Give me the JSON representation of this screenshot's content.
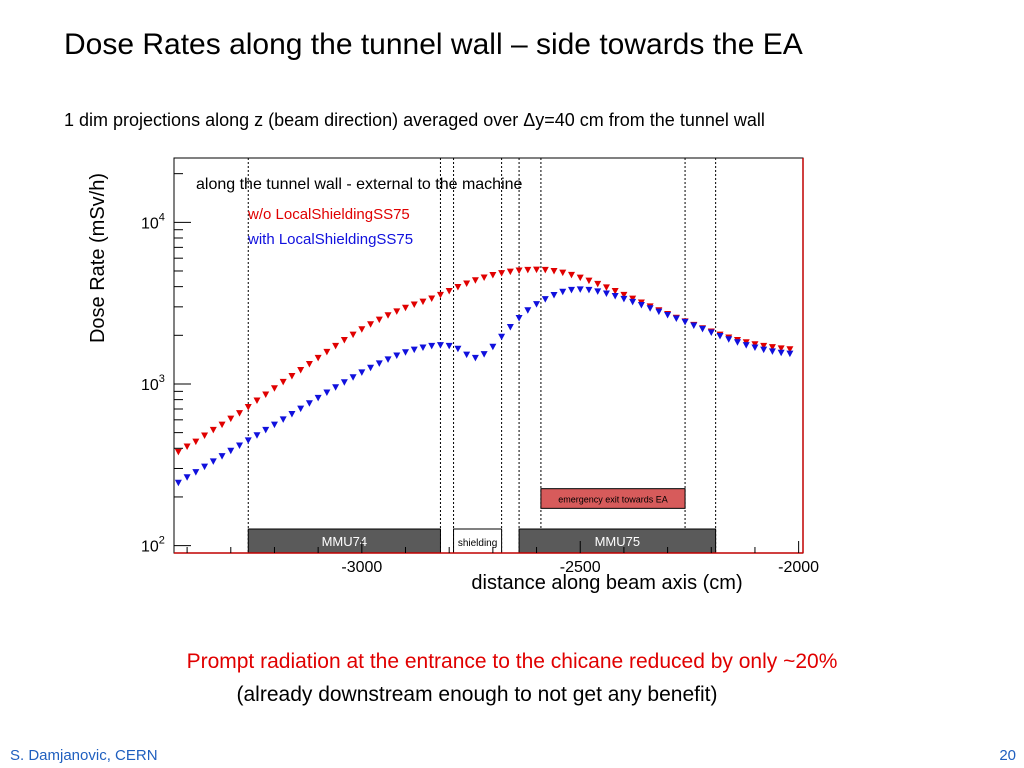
{
  "slide": {
    "title": "Dose Rates along the tunnel wall – side towards the EA",
    "subtitle": "1 dim projections along z (beam direction) averaged over Δy=40 cm from the tunnel wall",
    "conclusion": "Prompt radiation at the entrance to the chicane reduced by only ~20%",
    "conclusion_note": "(already downstream enough to not get any benefit)",
    "author": "S. Damjanovic, CERN",
    "page_number": "20"
  },
  "chart_data": {
    "type": "scatter",
    "title": "along the tunnel wall - external to the machine",
    "xlabel": "distance along beam axis (cm)",
    "ylabel": "Dose Rate (mSv/h)",
    "xlim": [
      -3430,
      -1990
    ],
    "ylim": [
      90,
      25000
    ],
    "y_scale": "log",
    "x_ticks": [
      {
        "value": -3000,
        "label": "-3000"
      },
      {
        "value": -2500,
        "label": "-2500"
      },
      {
        "value": -2000,
        "label": "-2000"
      }
    ],
    "y_ticks": [
      {
        "value": 100,
        "base": "10",
        "exp": "2"
      },
      {
        "value": 1000,
        "base": "10",
        "exp": "3"
      },
      {
        "value": 10000,
        "base": "10",
        "exp": "4"
      }
    ],
    "marker": "down-triangle",
    "grid": false,
    "legend_position": "top-left",
    "vertical_markers": [
      -3260,
      -2820,
      -2790,
      -2680,
      -2640,
      -2590,
      -2260,
      -2190
    ],
    "regions": [
      {
        "label": "MMU74",
        "x_start": -3260,
        "x_end": -2820,
        "fill": "#5a5a5a",
        "text_color": "#ffffff"
      },
      {
        "label": "shielding",
        "x_start": -2790,
        "x_end": -2680,
        "fill": "#ffffff",
        "text_color": "#000000"
      },
      {
        "label": "MMU75",
        "x_start": -2640,
        "x_end": -2190,
        "fill": "#5a5a5a",
        "text_color": "#ffffff"
      }
    ],
    "annotation": {
      "label": "emergency exit towards EA",
      "x_start": -2590,
      "x_end": -2260,
      "y_bottom": 170,
      "y_top": 225,
      "fill": "#d75b5b"
    },
    "series": [
      {
        "name": "w/o LocalShieldingSS75",
        "color": "#e00000",
        "points": [
          [
            -3420,
            380
          ],
          [
            -3400,
            410
          ],
          [
            -3380,
            440
          ],
          [
            -3360,
            480
          ],
          [
            -3340,
            520
          ],
          [
            -3320,
            560
          ],
          [
            -3300,
            610
          ],
          [
            -3280,
            660
          ],
          [
            -3260,
            720
          ],
          [
            -3240,
            790
          ],
          [
            -3220,
            860
          ],
          [
            -3200,
            940
          ],
          [
            -3180,
            1030
          ],
          [
            -3160,
            1120
          ],
          [
            -3140,
            1220
          ],
          [
            -3120,
            1330
          ],
          [
            -3100,
            1450
          ],
          [
            -3080,
            1580
          ],
          [
            -3060,
            1720
          ],
          [
            -3040,
            1870
          ],
          [
            -3020,
            2020
          ],
          [
            -3000,
            2180
          ],
          [
            -2980,
            2340
          ],
          [
            -2960,
            2500
          ],
          [
            -2940,
            2660
          ],
          [
            -2920,
            2810
          ],
          [
            -2900,
            2960
          ],
          [
            -2880,
            3100
          ],
          [
            -2860,
            3230
          ],
          [
            -2840,
            3380
          ],
          [
            -2820,
            3560
          ],
          [
            -2800,
            3760
          ],
          [
            -2780,
            3980
          ],
          [
            -2760,
            4180
          ],
          [
            -2740,
            4380
          ],
          [
            -2720,
            4560
          ],
          [
            -2700,
            4720
          ],
          [
            -2680,
            4850
          ],
          [
            -2660,
            4950
          ],
          [
            -2640,
            5030
          ],
          [
            -2620,
            5080
          ],
          [
            -2600,
            5100
          ],
          [
            -2580,
            5080
          ],
          [
            -2560,
            5000
          ],
          [
            -2540,
            4880
          ],
          [
            -2520,
            4730
          ],
          [
            -2500,
            4550
          ],
          [
            -2480,
            4360
          ],
          [
            -2460,
            4160
          ],
          [
            -2440,
            3960
          ],
          [
            -2420,
            3760
          ],
          [
            -2400,
            3560
          ],
          [
            -2380,
            3370
          ],
          [
            -2360,
            3190
          ],
          [
            -2340,
            3020
          ],
          [
            -2320,
            2860
          ],
          [
            -2300,
            2710
          ],
          [
            -2280,
            2570
          ],
          [
            -2260,
            2440
          ],
          [
            -2240,
            2320
          ],
          [
            -2220,
            2210
          ],
          [
            -2200,
            2110
          ],
          [
            -2180,
            2020
          ],
          [
            -2160,
            1940
          ],
          [
            -2140,
            1870
          ],
          [
            -2120,
            1810
          ],
          [
            -2100,
            1760
          ],
          [
            -2080,
            1720
          ],
          [
            -2060,
            1690
          ],
          [
            -2040,
            1660
          ],
          [
            -2020,
            1640
          ]
        ]
      },
      {
        "name": "with LocalShieldingSS75",
        "color": "#1010dd",
        "points": [
          [
            -3420,
            245
          ],
          [
            -3400,
            265
          ],
          [
            -3380,
            285
          ],
          [
            -3360,
            308
          ],
          [
            -3340,
            332
          ],
          [
            -3320,
            358
          ],
          [
            -3300,
            386
          ],
          [
            -3280,
            416
          ],
          [
            -3260,
            448
          ],
          [
            -3240,
            482
          ],
          [
            -3220,
            520
          ],
          [
            -3200,
            560
          ],
          [
            -3180,
            604
          ],
          [
            -3160,
            652
          ],
          [
            -3140,
            704
          ],
          [
            -3120,
            760
          ],
          [
            -3100,
            820
          ],
          [
            -3080,
            885
          ],
          [
            -3060,
            955
          ],
          [
            -3040,
            1025
          ],
          [
            -3020,
            1100
          ],
          [
            -3000,
            1180
          ],
          [
            -2980,
            1260
          ],
          [
            -2960,
            1340
          ],
          [
            -2940,
            1420
          ],
          [
            -2920,
            1500
          ],
          [
            -2900,
            1570
          ],
          [
            -2880,
            1630
          ],
          [
            -2860,
            1680
          ],
          [
            -2840,
            1720
          ],
          [
            -2820,
            1740
          ],
          [
            -2800,
            1720
          ],
          [
            -2780,
            1650
          ],
          [
            -2760,
            1520
          ],
          [
            -2740,
            1450
          ],
          [
            -2720,
            1530
          ],
          [
            -2700,
            1700
          ],
          [
            -2680,
            1960
          ],
          [
            -2660,
            2250
          ],
          [
            -2640,
            2560
          ],
          [
            -2620,
            2860
          ],
          [
            -2600,
            3120
          ],
          [
            -2580,
            3350
          ],
          [
            -2560,
            3550
          ],
          [
            -2540,
            3720
          ],
          [
            -2520,
            3820
          ],
          [
            -2500,
            3850
          ],
          [
            -2480,
            3820
          ],
          [
            -2460,
            3740
          ],
          [
            -2440,
            3630
          ],
          [
            -2420,
            3500
          ],
          [
            -2400,
            3360
          ],
          [
            -2380,
            3220
          ],
          [
            -2360,
            3080
          ],
          [
            -2340,
            2940
          ],
          [
            -2320,
            2800
          ],
          [
            -2300,
            2670
          ],
          [
            -2280,
            2540
          ],
          [
            -2260,
            2420
          ],
          [
            -2240,
            2300
          ],
          [
            -2220,
            2190
          ],
          [
            -2200,
            2080
          ],
          [
            -2180,
            1980
          ],
          [
            -2160,
            1890
          ],
          [
            -2140,
            1810
          ],
          [
            -2120,
            1740
          ],
          [
            -2100,
            1680
          ],
          [
            -2080,
            1630
          ],
          [
            -2060,
            1590
          ],
          [
            -2040,
            1560
          ],
          [
            -2020,
            1540
          ]
        ]
      }
    ]
  }
}
